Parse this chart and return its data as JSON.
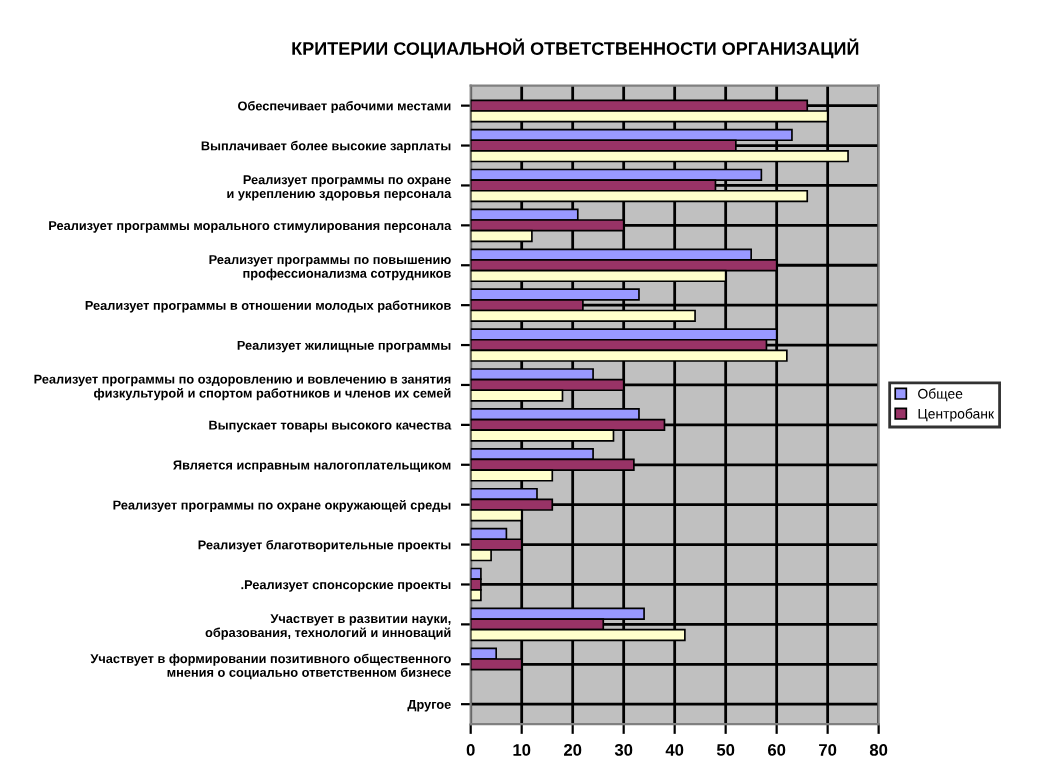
{
  "chart_data": {
    "type": "bar",
    "orientation": "horizontal",
    "title": "КРИТЕРИИ СОЦИАЛЬНОЙ ОТВЕТСТВЕННОСТИ ОРГАНИЗАЦИЙ",
    "categories": [
      "Обеспечивает рабочими местами",
      "Выплачивает более высокие зарплаты",
      "Реализует программы по охране и укреплению здоровья персонала",
      "Реализует программы морального стимулирования персонала",
      "Реализует программы по повышению профессионализма сотрудников",
      "Реализует программы в отношении молодых работников",
      "Реализует жилищные программы",
      "Реализует программы по оздоровлению и вовлечению в занятия физкультурой и спортом работников и членов их семей",
      "Выпускает товары высокого качества",
      "Является исправным налогоплательщиком",
      "Реализует программы по охране окружающей среды",
      "Реализует благотворительные проекты",
      ".Реализует спонсорские проекты",
      "Участвует в развитии науки, образования, технологий и инноваций",
      "Участвует в формировании позитивного общественного мнения о социально ответственном бизнесе",
      "Другое"
    ],
    "series": [
      {
        "name": "Общее",
        "color": "#9999ff",
        "values": [
          null,
          63,
          57,
          21,
          55,
          33,
          60,
          24,
          33,
          24,
          13,
          7,
          2,
          34,
          5,
          null
        ]
      },
      {
        "name": "Центробанк",
        "color": "#993366",
        "values": [
          66,
          52,
          48,
          30,
          60,
          22,
          58,
          30,
          38,
          32,
          16,
          10,
          2,
          26,
          10,
          null
        ]
      },
      {
        "color": "#ffffcc",
        "values": [
          70,
          74,
          66,
          12,
          50,
          44,
          62,
          18,
          28,
          16,
          10,
          4,
          2,
          42,
          null,
          null
        ]
      }
    ],
    "xlim": [
      0,
      80
    ],
    "xticks": [
      0,
      10,
      20,
      30,
      40,
      50,
      60,
      70,
      80
    ],
    "grid": true,
    "legend": "right"
  }
}
